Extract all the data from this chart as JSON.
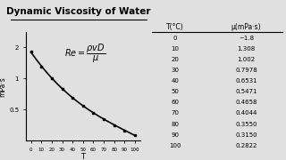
{
  "title": "Dynamic Viscosity of Water",
  "formula_text": "$Re = \\dfrac{\\rho v D}{\\mu}$",
  "ylabel": "mPa·s",
  "xlabel": "T",
  "temperatures": [
    0,
    10,
    20,
    30,
    40,
    50,
    60,
    70,
    80,
    90,
    100
  ],
  "viscosities": [
    1.8,
    1.308,
    1.002,
    0.7978,
    0.6531,
    0.5471,
    0.4658,
    0.4044,
    0.355,
    0.315,
    0.2822
  ],
  "table_temps": [
    "0",
    "10",
    "20",
    "30",
    "40",
    "50",
    "60",
    "70",
    "80",
    "90",
    "100"
  ],
  "table_visc": [
    "~1.8",
    "1.308",
    "1.002",
    "0.7978",
    "0.6531",
    "0.5471",
    "0.4658",
    "0.4044",
    "0.3550",
    "0.3150",
    "0.2822"
  ],
  "table_header_T": "T(°C)",
  "table_header_mu": "μ(mPa·s)",
  "bg_color": "#e0e0e0",
  "line_color": "#000000",
  "yticks": [
    0.5,
    1,
    2
  ],
  "ytick_labels": [
    "0.5",
    "1",
    "2"
  ],
  "xticks": [
    0,
    10,
    20,
    30,
    40,
    50,
    60,
    70,
    80,
    90,
    100
  ],
  "ylim_log": [
    0.25,
    2.8
  ],
  "xlim": [
    -5,
    105
  ]
}
